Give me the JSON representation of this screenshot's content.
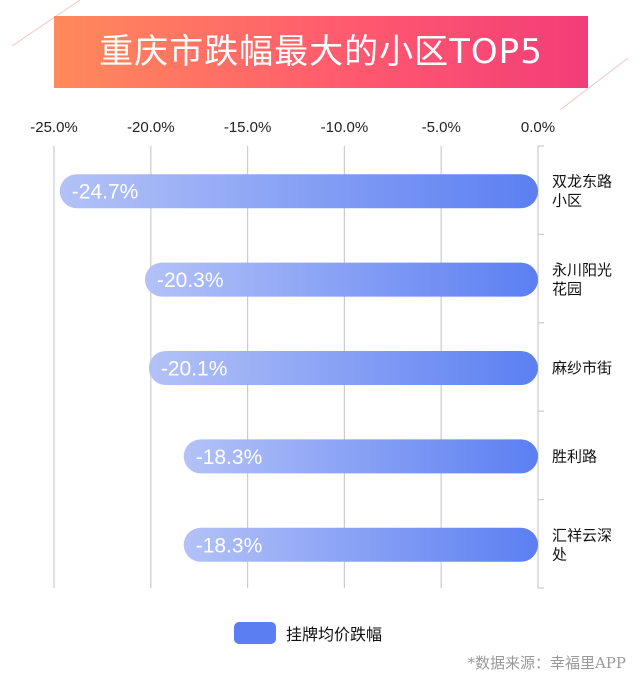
{
  "title": "重庆市跌幅最大的小区TOP5",
  "source_note": "*数据来源：幸福里APP",
  "colors": {
    "banner_start": "#ff8a5a",
    "banner_end": "#f23d78",
    "bar_start": "#b3c2f7",
    "bar_end": "#5b7ff2",
    "grid": "#cccccc"
  },
  "chart_data": {
    "type": "bar",
    "orientation": "horizontal",
    "categories": [
      [
        "双龙东路",
        "小区"
      ],
      [
        "永川阳光",
        "花园"
      ],
      [
        "麻纱市街"
      ],
      [
        "胜利路"
      ],
      [
        "汇祥云深",
        "处"
      ]
    ],
    "series": [
      {
        "name": "挂牌均价跌幅",
        "values": [
          -24.7,
          -20.3,
          -20.1,
          -18.3,
          -18.3
        ]
      }
    ],
    "data_labels": [
      "-24.7%",
      "-20.3%",
      "-20.1%",
      "-18.3%",
      "-18.3%"
    ],
    "x_ticks": [
      "-25.0%",
      "-20.0%",
      "-15.0%",
      "-10.0%",
      "-5.0%",
      "0.0%"
    ],
    "x_tick_values": [
      -25,
      -20,
      -15,
      -10,
      -5,
      0
    ],
    "xlim": [
      -25,
      0
    ],
    "x_axis_position": "top",
    "category_axis_position": "right",
    "grid": true,
    "legend_position": "bottom"
  }
}
